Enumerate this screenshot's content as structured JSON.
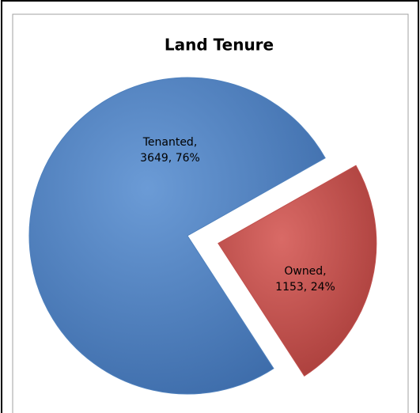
{
  "chart_data": {
    "type": "pie",
    "title": "Land Tenure",
    "values": [
      3649,
      1153
    ],
    "value_labels": [
      [
        "Tenanted,",
        "3649, 76%"
      ],
      [
        "Owned,",
        "1153, 24%"
      ]
    ],
    "colors": [
      "#4f81bd",
      "#c0504d"
    ],
    "exploded": [
      false,
      true
    ]
  }
}
